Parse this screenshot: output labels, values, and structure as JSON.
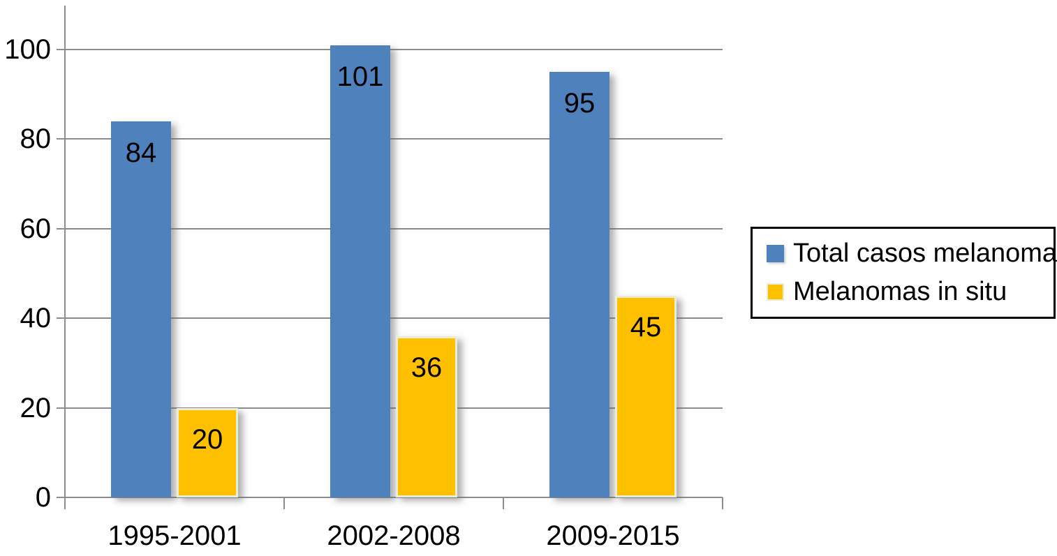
{
  "chart_data": {
    "type": "bar",
    "title": "",
    "xlabel": "",
    "ylabel": "",
    "categories": [
      "1995-2001",
      "2002-2008",
      "2009-2015"
    ],
    "series": [
      {
        "name": "Total casos melanoma",
        "values": [
          84,
          101,
          95
        ],
        "color": "#4F81BD",
        "border_color": null
      },
      {
        "name": "Melanomas in situ",
        "values": [
          20,
          36,
          45
        ],
        "color": "#FFC000",
        "border_color": "#E9EDD8"
      }
    ],
    "data_labels": true,
    "ylim": [
      0,
      100
    ],
    "yticks": [
      0,
      20,
      40,
      60,
      80,
      100
    ],
    "grid": true,
    "legend_position": "right",
    "axis_color": "#8C8C8C",
    "text_color": "#000000",
    "legend_border_color": "#000000",
    "background_color": "#FFFFFF"
  }
}
